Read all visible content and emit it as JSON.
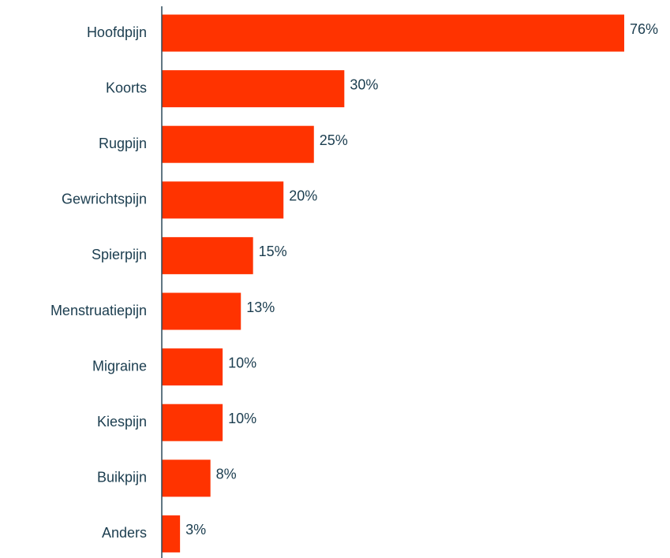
{
  "chart_data": {
    "type": "bar",
    "orientation": "horizontal",
    "categories": [
      "Hoofdpijn",
      "Koorts",
      "Rugpijn",
      "Gewrichtspijn",
      "Spierpijn",
      "Menstruatiepijn",
      "Migraine",
      "Kiespijn",
      "Buikpijn",
      "Anders"
    ],
    "values": [
      76,
      30,
      25,
      20,
      15,
      13,
      10,
      10,
      8,
      3
    ],
    "value_labels": [
      "76%",
      "30%",
      "25%",
      "20%",
      "15%",
      "13%",
      "10%",
      "10%",
      "8%",
      "3%"
    ],
    "color": "#ff3300"
  }
}
